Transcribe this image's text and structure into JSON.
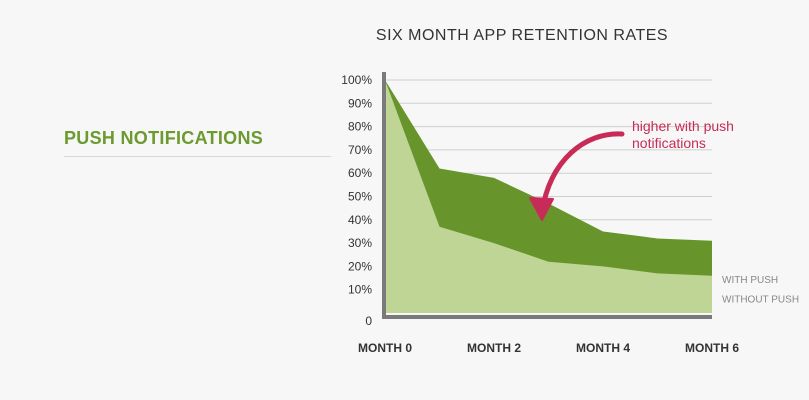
{
  "slide": {
    "section_title": "PUSH NOTIFICATIONS"
  },
  "chart_data": {
    "type": "area",
    "title": "SIX MONTH APP RETENTION RATES",
    "xlabel": "",
    "ylabel": "",
    "x": [
      0,
      1,
      2,
      3,
      4,
      5,
      6
    ],
    "x_tick_labels": [
      {
        "x": 0,
        "label": "MONTH 0"
      },
      {
        "x": 2,
        "label": "MONTH 2"
      },
      {
        "x": 4,
        "label": "MONTH 4"
      },
      {
        "x": 6,
        "label": "MONTH 6"
      }
    ],
    "y_ticks": [
      0,
      10,
      20,
      30,
      40,
      50,
      60,
      70,
      80,
      90,
      100
    ],
    "y_tick_labels": [
      "0",
      "10%",
      "20%",
      "30%",
      "40%",
      "50%",
      "60%",
      "70%",
      "80%",
      "90%",
      "100%"
    ],
    "ylim": [
      0,
      100
    ],
    "grid": true,
    "series": [
      {
        "name": "WITH PUSH",
        "x": [
          0,
          1,
          2,
          3,
          4,
          5,
          6
        ],
        "values": [
          100,
          62,
          58,
          47,
          35,
          32,
          31
        ],
        "color": "#67952b"
      },
      {
        "name": "WITHOUT PUSH",
        "x": [
          0,
          1,
          2,
          3,
          4,
          5,
          6
        ],
        "values": [
          100,
          37,
          30,
          22,
          20,
          17,
          16
        ],
        "color": "#bfd596"
      }
    ],
    "annotation": {
      "text_lines": [
        "higher with push",
        "notifications"
      ],
      "color": "#c72b57"
    }
  }
}
